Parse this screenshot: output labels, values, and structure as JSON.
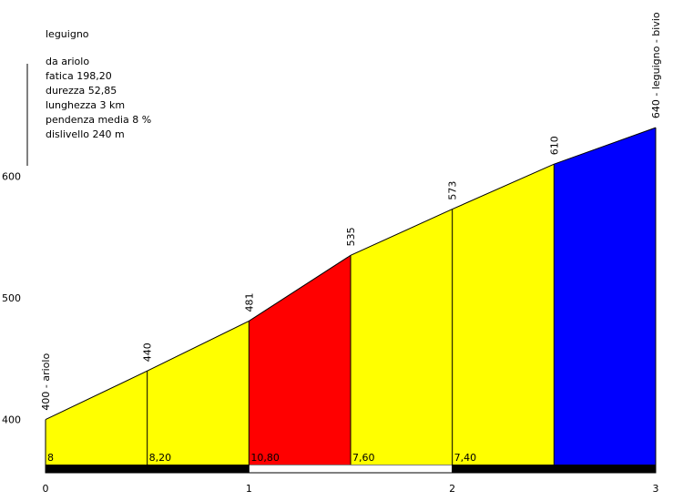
{
  "chart_data": {
    "type": "profile",
    "info": {
      "name": "leguigno",
      "lines": [
        "da ariolo",
        "fatica 198,20",
        "durezza 52,85",
        "lunghezza 3 km",
        "pendenza media 8 %",
        "dislivello 240 m"
      ]
    },
    "x": [
      0,
      0.5,
      1,
      1.5,
      2,
      2.5,
      3
    ],
    "values": [
      400,
      440,
      481,
      535,
      573,
      610,
      640
    ],
    "value_labels": [
      "400 - ariolo",
      "440",
      "481",
      "535",
      "573",
      "610",
      "640 - leguigno - bivio"
    ],
    "segments": {
      "gradient_labels": [
        "8",
        "8,20",
        "10,80",
        "7,60",
        "7,40",
        null
      ],
      "colors": [
        "#ffff00",
        "#ffff00",
        "#ff0000",
        "#ffff00",
        "#ffff00",
        "#0000ff"
      ]
    },
    "xlim": [
      0,
      3
    ],
    "xticks": [
      0,
      1,
      2,
      3
    ],
    "ylim": [
      363,
      715
    ],
    "yticks": [
      400,
      500,
      600
    ]
  }
}
